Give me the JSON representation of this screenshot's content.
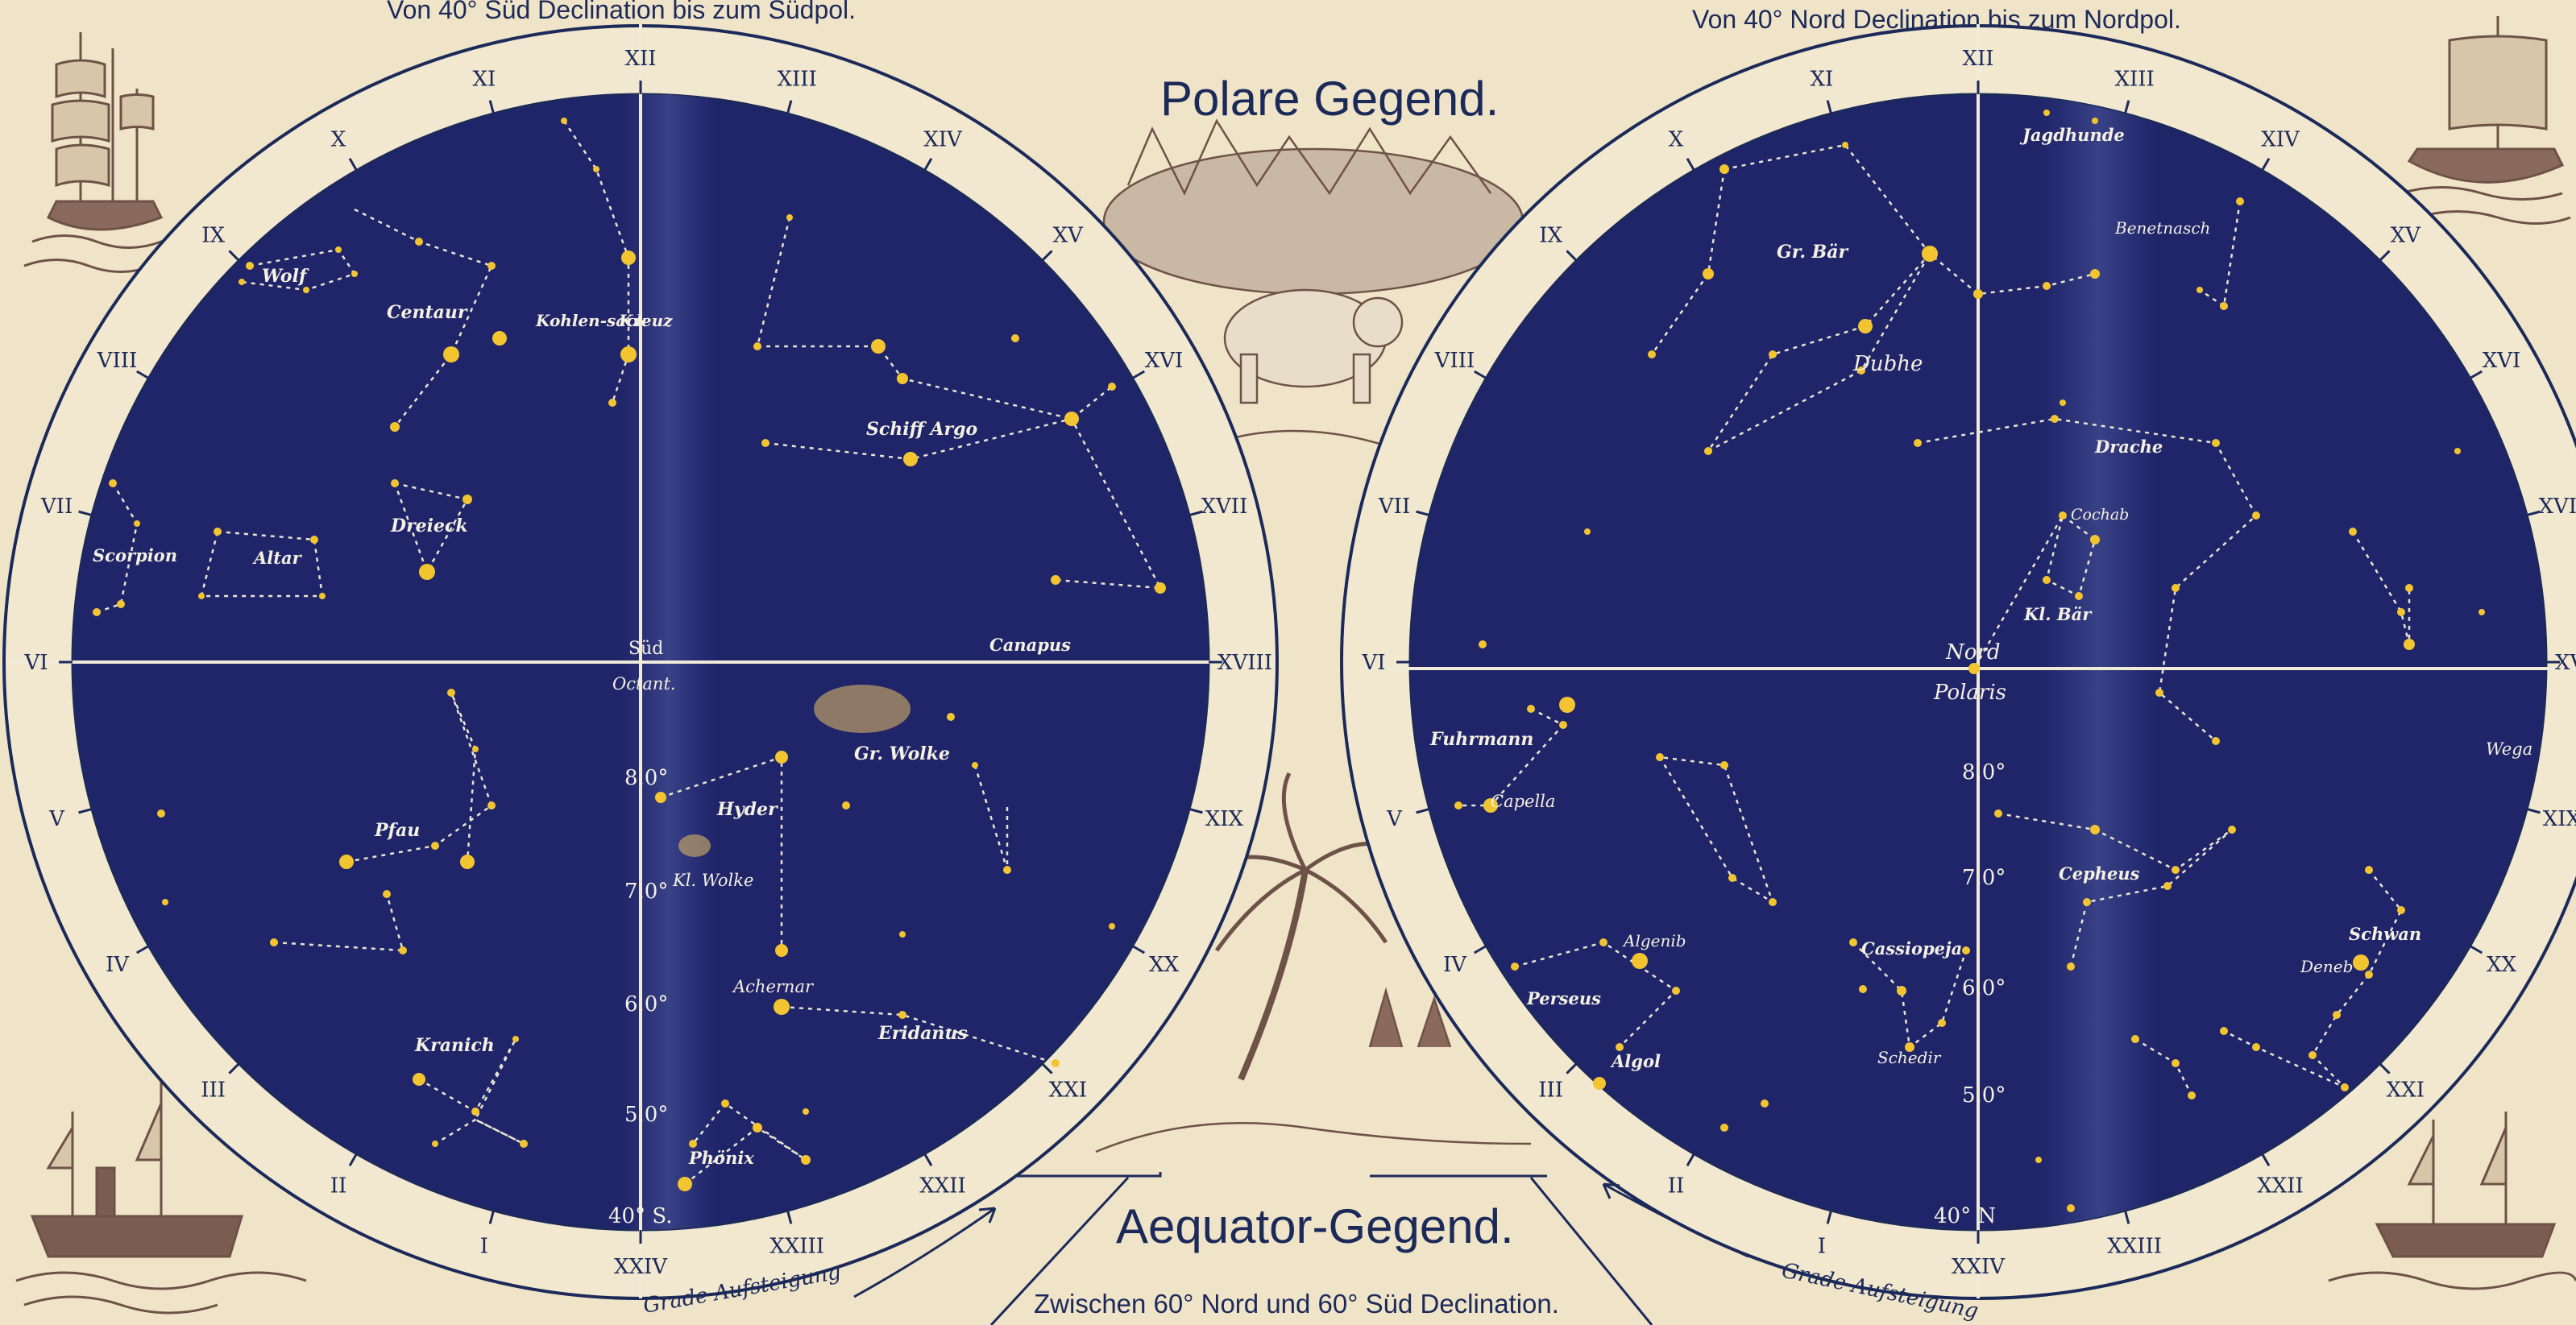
{
  "headers": {
    "south_range": "Von 40° Süd Declination bis zum Südpol.",
    "north_range": "Von 40° Nord Declination bis zum Nordpol.",
    "polar_title": "Polare Gegend.",
    "equator_title": "Aequator-Gegend.",
    "equator_range": "Zwischen 60° Nord und 60° Süd Declination."
  },
  "ring_labels": {
    "ascension_left": "Grade Aufsteigung",
    "ascension_right": "Grade Aufsteigung"
  },
  "south_map": {
    "hours": [
      "XII",
      "XI",
      "X",
      "IX",
      "VIII",
      "VII",
      "VI",
      "V",
      "IV",
      "III",
      "II",
      "I",
      "XXIV",
      "XXIII",
      "XXII",
      "XXI",
      "XX",
      "XIX",
      "XVIII",
      "XVII",
      "XVI",
      "XV",
      "XIV",
      "XIII"
    ],
    "center_label": "Süd",
    "pole_label": "Octant.",
    "declinations": [
      "8.0°",
      "7.0°",
      "6.0°",
      "5.0°",
      "40° S."
    ],
    "constellations": [
      "Wolf",
      "Centaur",
      "Kohlen-sack",
      "Kreuz",
      "Schiff Argo",
      "Dreieck",
      "Scorpion",
      "Altar",
      "Canapus",
      "Pfau",
      "Hyder",
      "Gr. Wolke",
      "Kl. Wolke",
      "Achernar",
      "Eridanus",
      "Kranich",
      "Phönix"
    ]
  },
  "north_map": {
    "hours": [
      "XII",
      "XIII",
      "XIV",
      "XV",
      "XVI",
      "XVII",
      "XVIII",
      "XIX",
      "XX",
      "XXI",
      "XXII",
      "XXIII",
      "XXIV",
      "I",
      "II",
      "III",
      "IV",
      "V",
      "VI",
      "VII",
      "VIII",
      "IX",
      "X",
      "XI"
    ],
    "center_label": "Nord",
    "pole_label": "Polaris",
    "declinations": [
      "8.0°",
      "7.0°",
      "6.0°",
      "5.0°",
      "40° N"
    ],
    "constellations": [
      "Jagdhunde",
      "Gr. Bär",
      "Benetnasch",
      "Dubhe",
      "Drache",
      "Cochab",
      "Kl. Bär",
      "Fuhrmann",
      "Capella",
      "Wega",
      "Cepheus",
      "Algenib",
      "Cassiopeja",
      "Perseus",
      "Algol",
      "Schedir",
      "Schwan",
      "Deneb"
    ]
  },
  "colors": {
    "sky": "#20256a",
    "star": "#f2c530",
    "paper": "#efe3c8",
    "ink": "#1c2a5a",
    "engraving": "#6e5248"
  }
}
